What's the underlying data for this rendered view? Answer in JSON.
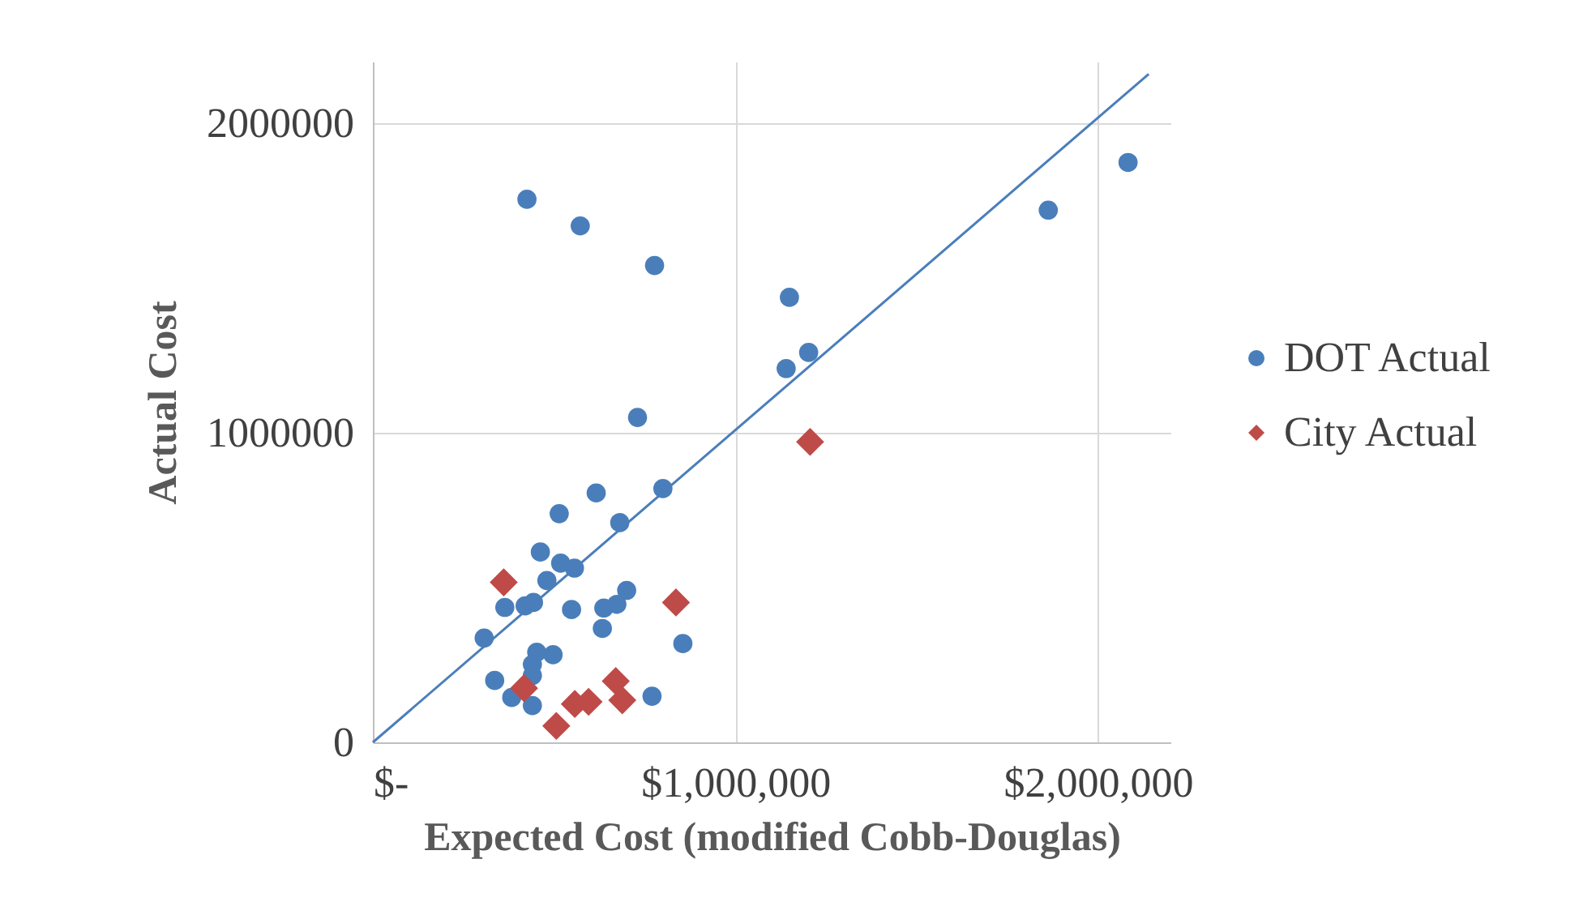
{
  "chart_data": {
    "type": "scatter",
    "xlabel": "Expected Cost (modified Cobb-Douglas)",
    "ylabel": "Actual Cost",
    "xlim": [
      0,
      2200000
    ],
    "ylim": [
      0,
      2200000
    ],
    "xticks": [
      {
        "value": 0,
        "label": "$-"
      },
      {
        "value": 1000000,
        "label": "$1,000,000"
      },
      {
        "value": 2000000,
        "label": "$2,000,000"
      }
    ],
    "yticks": [
      0,
      1000000,
      2000000
    ],
    "grid": true,
    "legend": "right",
    "series": [
      {
        "name": "DOT Actual",
        "color": "#4a7ebb",
        "marker": "circle",
        "x": [
          425000,
          572000,
          777000,
          1149000,
          1202000,
          1140000,
          1863000,
          2083000,
          730000,
          800000,
          616000,
          514000,
          681000,
          462000,
          518000,
          556000,
          480000,
          700000,
          364000,
          420000,
          443000,
          548000,
          637000,
          673000,
          633000,
          307000,
          855000,
          452000,
          497000,
          440000,
          440000,
          336000,
          383000,
          440000,
          770000
        ],
        "values": [
          1755000,
          1669000,
          1541000,
          1438000,
          1260000,
          1208000,
          1720000,
          1874000,
          1050000,
          820000,
          806000,
          739000,
          710000,
          615000,
          579000,
          563000,
          523000,
          491000,
          436000,
          441000,
          452000,
          429000,
          434000,
          446000,
          368000,
          337000,
          319000,
          291000,
          283000,
          252000,
          216000,
          200000,
          145000,
          119000,
          149000
        ]
      },
      {
        "name": "City Actual",
        "color": "#be4b48",
        "marker": "diamond",
        "x": [
          361000,
          1206000,
          836000,
          417000,
          670000,
          688000,
          557000,
          595000,
          506000
        ],
        "values": [
          517000,
          971000,
          452000,
          175000,
          198000,
          136000,
          124000,
          131000,
          53000
        ]
      },
      {
        "type": "line",
        "color": "#4a7ebb",
        "x": [
          0,
          2140000
        ],
        "values": [
          0,
          2160000
        ]
      }
    ]
  }
}
